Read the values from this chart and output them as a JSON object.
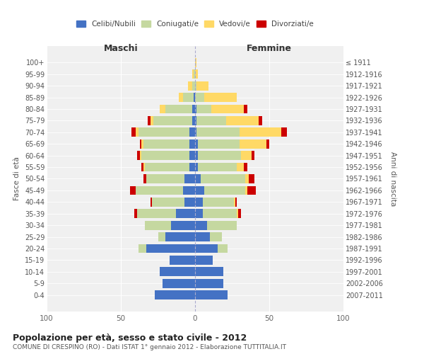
{
  "age_groups": [
    "0-4",
    "5-9",
    "10-14",
    "15-19",
    "20-24",
    "25-29",
    "30-34",
    "35-39",
    "40-44",
    "45-49",
    "50-54",
    "55-59",
    "60-64",
    "65-69",
    "70-74",
    "75-79",
    "80-84",
    "85-89",
    "90-94",
    "95-99",
    "100+"
  ],
  "birth_years": [
    "2007-2011",
    "2002-2006",
    "1997-2001",
    "1992-1996",
    "1987-1991",
    "1982-1986",
    "1977-1981",
    "1972-1976",
    "1967-1971",
    "1962-1966",
    "1957-1961",
    "1952-1956",
    "1947-1951",
    "1942-1946",
    "1937-1941",
    "1932-1936",
    "1927-1931",
    "1922-1926",
    "1917-1921",
    "1912-1916",
    "≤ 1911"
  ],
  "colors": {
    "celibe": "#4472c4",
    "coniugato": "#c5d8a0",
    "vedovo": "#ffd966",
    "divorziato": "#cc0000"
  },
  "maschi": {
    "celibe": [
      27,
      22,
      24,
      17,
      33,
      20,
      16,
      13,
      7,
      8,
      7,
      4,
      4,
      4,
      4,
      2,
      2,
      1,
      0,
      0,
      0
    ],
    "coniugato": [
      0,
      0,
      0,
      0,
      5,
      5,
      18,
      26,
      22,
      32,
      26,
      30,
      32,
      31,
      34,
      26,
      18,
      7,
      2,
      1,
      0
    ],
    "vedovo": [
      0,
      0,
      0,
      0,
      0,
      0,
      0,
      0,
      0,
      0,
      0,
      1,
      1,
      1,
      2,
      2,
      4,
      3,
      3,
      1,
      0
    ],
    "divorziato": [
      0,
      0,
      0,
      0,
      0,
      0,
      0,
      2,
      1,
      4,
      2,
      1,
      2,
      1,
      3,
      2,
      0,
      0,
      0,
      0,
      0
    ]
  },
  "femmine": {
    "nubile": [
      22,
      19,
      19,
      12,
      15,
      10,
      8,
      5,
      5,
      6,
      4,
      2,
      2,
      2,
      1,
      1,
      1,
      0,
      0,
      0,
      0
    ],
    "coniugata": [
      0,
      0,
      0,
      0,
      7,
      8,
      20,
      23,
      21,
      28,
      30,
      26,
      29,
      28,
      29,
      20,
      10,
      6,
      1,
      0,
      0
    ],
    "vedova": [
      0,
      0,
      0,
      0,
      0,
      0,
      0,
      1,
      1,
      1,
      2,
      5,
      7,
      18,
      28,
      22,
      22,
      22,
      8,
      2,
      1
    ],
    "divorziata": [
      0,
      0,
      0,
      0,
      0,
      0,
      0,
      2,
      1,
      6,
      4,
      2,
      2,
      2,
      4,
      2,
      2,
      0,
      0,
      0,
      0
    ]
  },
  "title": "Popolazione per età, sesso e stato civile - 2012",
  "subtitle": "COMUNE DI CRESPINO (RO) - Dati ISTAT 1° gennaio 2012 - Elaborazione TUTTITALIA.IT",
  "xlabel_left": "Maschi",
  "xlabel_right": "Femmine",
  "ylabel_left": "Fasce di età",
  "ylabel_right": "Anni di nascita",
  "xlim": 100,
  "legend_labels": [
    "Celibi/Nubili",
    "Coniugati/e",
    "Vedovi/e",
    "Divorziati/e"
  ],
  "background_color": "#f0f0f0"
}
